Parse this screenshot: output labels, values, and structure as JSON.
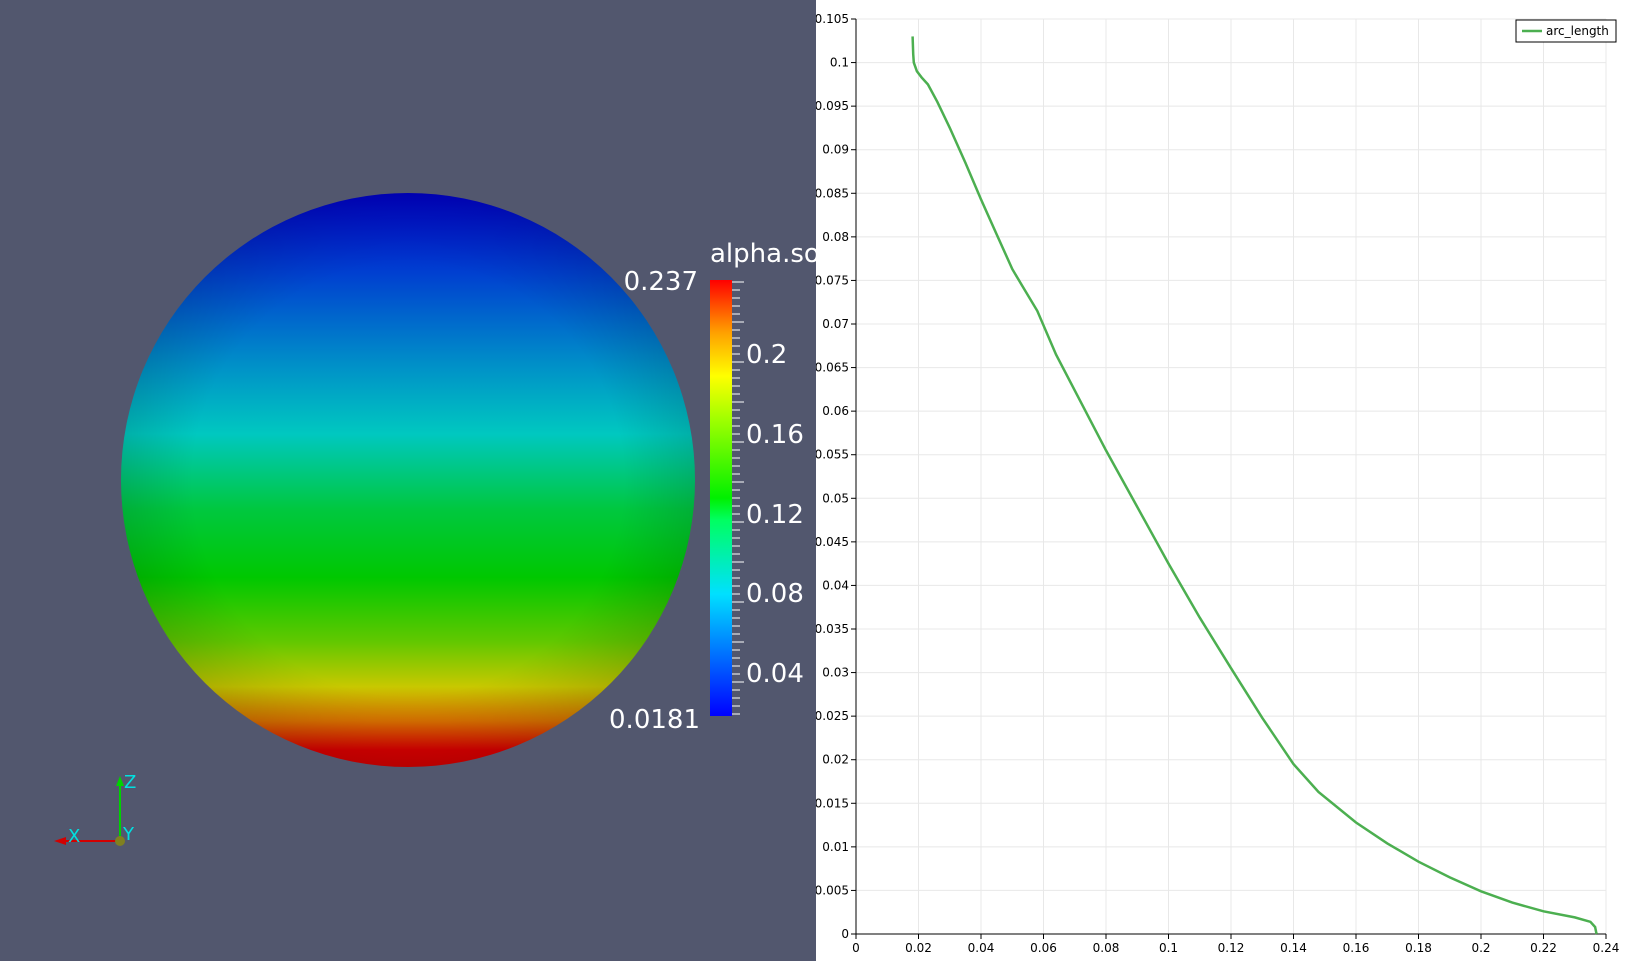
{
  "render_view": {
    "colorbar": {
      "title": "alpha.so",
      "max_label": "0.237",
      "min_label": "0.0181",
      "tick_labels": [
        "0.2",
        "0.16",
        "0.12",
        "0.08",
        "0.04"
      ],
      "colors": [
        "#0000d8",
        "#0076d8",
        "#00cbc8",
        "#00d200",
        "#c8d200",
        "#d80000"
      ]
    },
    "orientation_axes": {
      "x_label": "X",
      "y_label": "Y",
      "z_label": "Z",
      "x_color": "#d20000",
      "y_color": "#e0e000",
      "z_color": "#00d200"
    },
    "background_color": "#52576e"
  },
  "chart_data": {
    "type": "line",
    "series": [
      {
        "name": "arc_length",
        "color": "#4caf50",
        "x": [
          0.0181,
          0.0183,
          0.0185,
          0.0195,
          0.021,
          0.023,
          0.026,
          0.03,
          0.035,
          0.04,
          0.045,
          0.05,
          0.053,
          0.058,
          0.064,
          0.072,
          0.08,
          0.09,
          0.1,
          0.11,
          0.12,
          0.13,
          0.14,
          0.148,
          0.16,
          0.17,
          0.18,
          0.19,
          0.2,
          0.21,
          0.22,
          0.23,
          0.235,
          0.2365,
          0.2368,
          0.237
        ],
        "y": [
          0.103,
          0.101,
          0.1,
          0.099,
          0.0983,
          0.0975,
          0.0955,
          0.0925,
          0.0885,
          0.0843,
          0.0803,
          0.0763,
          0.0745,
          0.0715,
          0.0665,
          0.061,
          0.0555,
          0.049,
          0.0425,
          0.0363,
          0.0305,
          0.0248,
          0.0195,
          0.0163,
          0.0128,
          0.0104,
          0.0083,
          0.0065,
          0.0049,
          0.0036,
          0.0026,
          0.0019,
          0.0014,
          0.0008,
          0.0003,
          0.0
        ]
      }
    ],
    "xlim": [
      0,
      0.24
    ],
    "ylim": [
      0,
      0.105
    ],
    "xticks": [
      "0",
      "0.02",
      "0.04",
      "0.06",
      "0.08",
      "0.1",
      "0.12",
      "0.14",
      "0.16",
      "0.18",
      "0.2",
      "0.22",
      "0.24"
    ],
    "yticks": [
      "0",
      "0.005",
      "0.01",
      "0.015",
      "0.02",
      "0.025",
      "0.03",
      "0.035",
      "0.04",
      "0.045",
      "0.05",
      "0.055",
      "0.06",
      "0.065",
      "0.07",
      "0.075",
      "0.08",
      "0.085",
      "0.09",
      "0.095",
      "0.1",
      "0.105"
    ],
    "grid": true,
    "legend_position": "top-right"
  }
}
